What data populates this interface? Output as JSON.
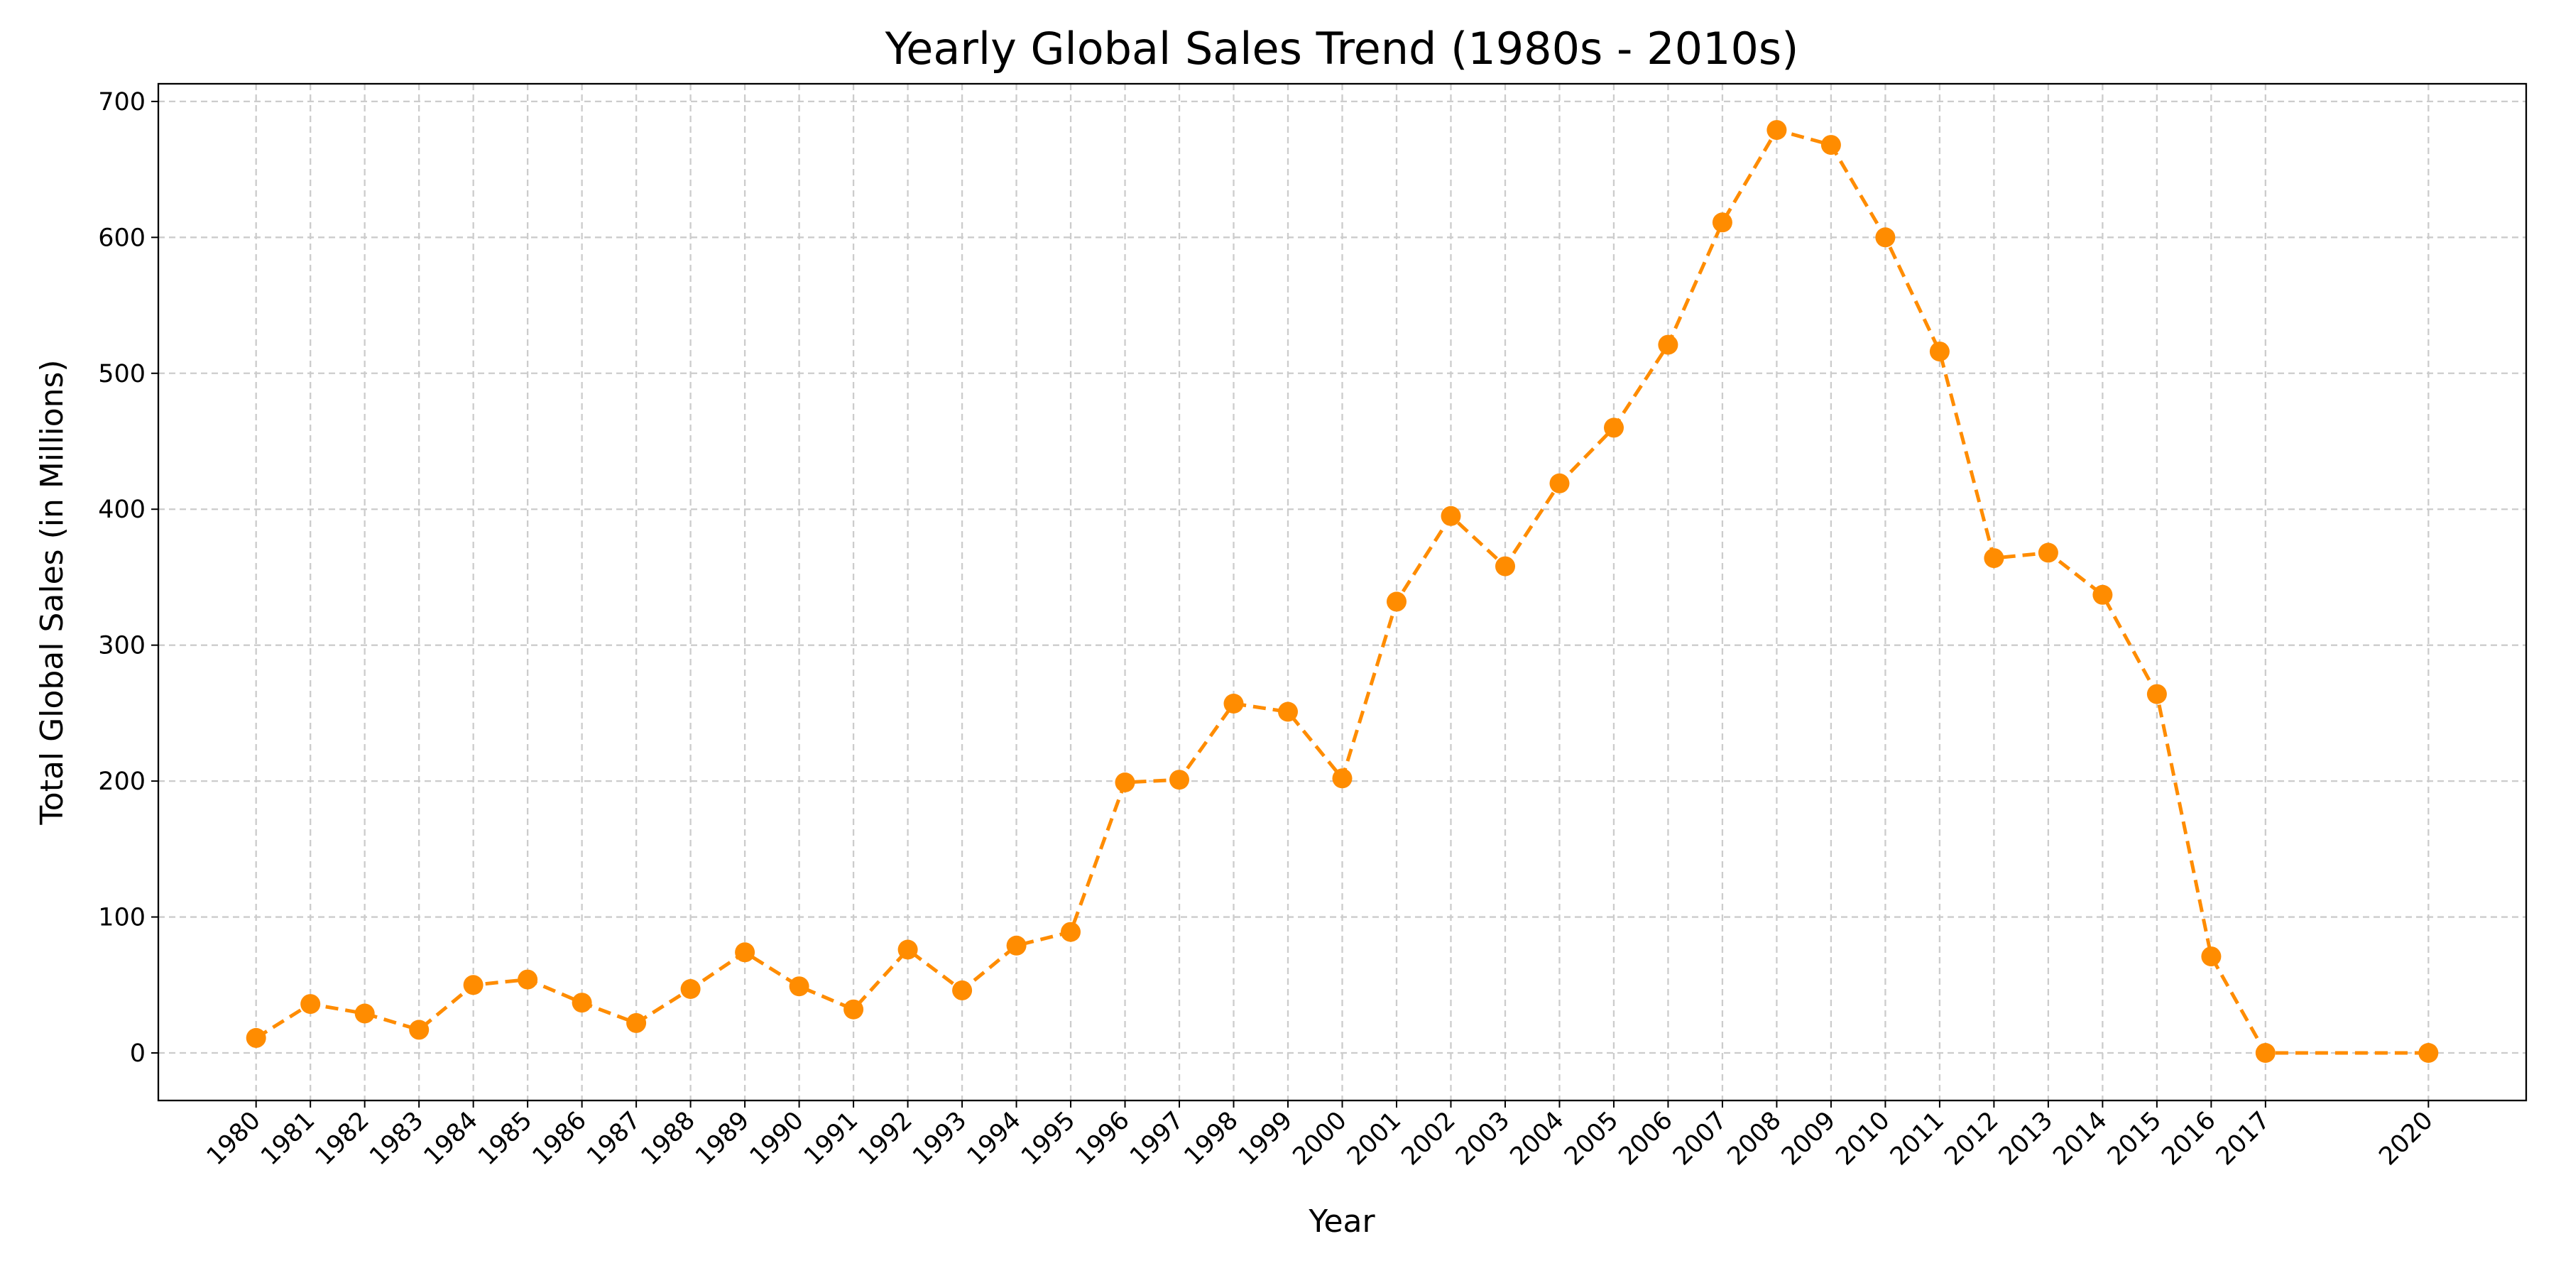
{
  "chart_data": {
    "type": "line",
    "title": "Yearly Global Sales Trend (1980s - 2010s)",
    "xlabel": "Year",
    "ylabel": "Total Global Sales (in Millions)",
    "x": [
      1980,
      1981,
      1982,
      1983,
      1984,
      1985,
      1986,
      1987,
      1988,
      1989,
      1990,
      1991,
      1992,
      1993,
      1994,
      1995,
      1996,
      1997,
      1998,
      1999,
      2000,
      2001,
      2002,
      2003,
      2004,
      2005,
      2006,
      2007,
      2008,
      2009,
      2010,
      2011,
      2012,
      2013,
      2014,
      2015,
      2016,
      2017,
      2020
    ],
    "y": [
      11,
      36,
      29,
      17,
      50,
      54,
      37,
      22,
      47,
      74,
      49,
      32,
      76,
      46,
      79,
      89,
      199,
      201,
      257,
      251,
      202,
      332,
      395,
      358,
      419,
      460,
      521,
      611,
      679,
      668,
      600,
      516,
      364,
      368,
      337,
      264,
      71,
      0,
      0
    ],
    "x_tick_labels": [
      "1980",
      "1981",
      "1982",
      "1983",
      "1984",
      "1985",
      "1986",
      "1987",
      "1988",
      "1989",
      "1990",
      "1991",
      "1992",
      "1993",
      "1994",
      "1995",
      "1996",
      "1997",
      "1998",
      "1999",
      "2000",
      "2001",
      "2002",
      "2003",
      "2004",
      "2005",
      "2006",
      "2007",
      "2008",
      "2009",
      "2010",
      "2011",
      "2012",
      "2013",
      "2014",
      "2015",
      "2016",
      "2017",
      "2020"
    ],
    "y_ticks": [
      0,
      100,
      200,
      300,
      400,
      500,
      600,
      700
    ],
    "y_tick_labels": [
      "0",
      "100",
      "200",
      "300",
      "400",
      "500",
      "600",
      "700"
    ],
    "xlim": [
      1978.2,
      2021.8
    ],
    "ylim": [
      -35,
      713
    ],
    "grid": true,
    "line_style": "dashed",
    "marker": "circle",
    "colors": {
      "series": "#ff8c00",
      "grid": "#cccccc",
      "axis": "#000000"
    }
  }
}
